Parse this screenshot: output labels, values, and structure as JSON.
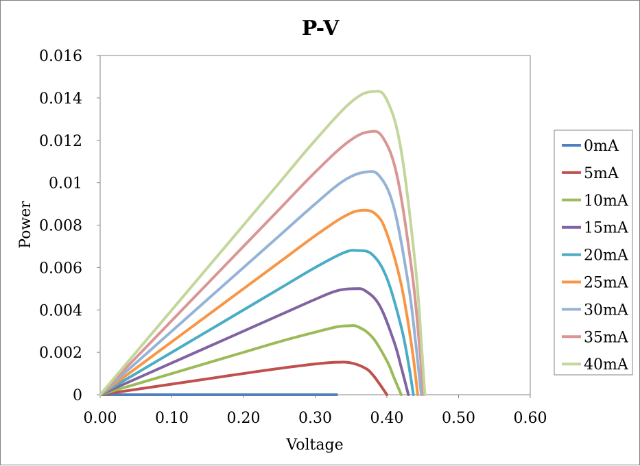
{
  "chart_data": {
    "type": "line",
    "title": "P-V",
    "xlabel": "Voltage",
    "ylabel": "Power",
    "xlim": [
      0,
      0.6
    ],
    "ylim": [
      0,
      0.016
    ],
    "x_ticks": [
      "0.00",
      "0.10",
      "0.20",
      "0.30",
      "0.40",
      "0.50",
      "0.60"
    ],
    "y_ticks": [
      "0",
      "0.002",
      "0.004",
      "0.006",
      "0.008",
      "0.01",
      "0.012",
      "0.014",
      "0.016"
    ],
    "grid": false,
    "legend_position": "right",
    "series": [
      {
        "name": "0mA",
        "color": "#4f81bd",
        "x": [
          0.0,
          0.05,
          0.1,
          0.15,
          0.2,
          0.25,
          0.3,
          0.33
        ],
        "y": [
          0,
          0,
          0,
          0,
          0,
          0,
          0,
          0
        ]
      },
      {
        "name": "5mA",
        "color": "#c0504d",
        "x": [
          0.0,
          0.05,
          0.1,
          0.15,
          0.2,
          0.25,
          0.3,
          0.33,
          0.35,
          0.37,
          0.38,
          0.39,
          0.4
        ],
        "y": [
          0,
          0.00025,
          0.0005,
          0.00075,
          0.001,
          0.00124,
          0.00145,
          0.00153,
          0.0015,
          0.00125,
          0.00095,
          0.0005,
          0
        ]
      },
      {
        "name": "10mA",
        "color": "#9bbb59",
        "x": [
          0.0,
          0.05,
          0.1,
          0.15,
          0.2,
          0.25,
          0.3,
          0.33,
          0.345,
          0.36,
          0.38,
          0.4,
          0.41,
          0.42
        ],
        "y": [
          0,
          0.0005,
          0.001,
          0.0015,
          0.002,
          0.0025,
          0.00295,
          0.0032,
          0.00325,
          0.0032,
          0.0027,
          0.0016,
          0.0008,
          0
        ]
      },
      {
        "name": "15mA",
        "color": "#8064a2",
        "x": [
          0.0,
          0.05,
          0.1,
          0.15,
          0.2,
          0.25,
          0.3,
          0.33,
          0.355,
          0.37,
          0.39,
          0.41,
          0.42,
          0.43
        ],
        "y": [
          0,
          0.00075,
          0.0015,
          0.00225,
          0.003,
          0.00375,
          0.0045,
          0.0049,
          0.005,
          0.0049,
          0.0042,
          0.0025,
          0.0013,
          0
        ]
      },
      {
        "name": "20mA",
        "color": "#4bacc6",
        "x": [
          0.0,
          0.05,
          0.1,
          0.15,
          0.2,
          0.25,
          0.3,
          0.34,
          0.36,
          0.38,
          0.4,
          0.42,
          0.43,
          0.437
        ],
        "y": [
          0,
          0.001,
          0.002,
          0.003,
          0.004,
          0.005,
          0.006,
          0.0067,
          0.0068,
          0.0066,
          0.0055,
          0.0032,
          0.0015,
          0
        ]
      },
      {
        "name": "25mA",
        "color": "#f79646",
        "x": [
          0.0,
          0.05,
          0.1,
          0.15,
          0.2,
          0.25,
          0.3,
          0.34,
          0.365,
          0.385,
          0.4,
          0.42,
          0.435,
          0.443
        ],
        "y": [
          0,
          0.00125,
          0.0025,
          0.00375,
          0.005,
          0.00625,
          0.0075,
          0.0084,
          0.0087,
          0.0085,
          0.0076,
          0.0052,
          0.0022,
          0
        ]
      },
      {
        "name": "30mA",
        "color": "#95b3d7",
        "x": [
          0.0,
          0.05,
          0.1,
          0.15,
          0.2,
          0.25,
          0.3,
          0.34,
          0.37,
          0.39,
          0.41,
          0.43,
          0.44,
          0.448
        ],
        "y": [
          0,
          0.0015,
          0.003,
          0.0045,
          0.006,
          0.0075,
          0.009,
          0.0101,
          0.0105,
          0.0103,
          0.0088,
          0.0052,
          0.0025,
          0
        ]
      },
      {
        "name": "35mA",
        "color": "#d99694",
        "x": [
          0.0,
          0.05,
          0.1,
          0.15,
          0.2,
          0.25,
          0.3,
          0.345,
          0.375,
          0.395,
          0.415,
          0.435,
          0.445,
          0.451
        ],
        "y": [
          0,
          0.00175,
          0.0035,
          0.00525,
          0.007,
          0.00875,
          0.0105,
          0.0119,
          0.0124,
          0.0121,
          0.0102,
          0.0058,
          0.0025,
          0
        ]
      },
      {
        "name": "40mA",
        "color": "#c3d69b",
        "x": [
          0.0,
          0.05,
          0.1,
          0.15,
          0.2,
          0.25,
          0.3,
          0.35,
          0.38,
          0.4,
          0.42,
          0.44,
          0.448,
          0.453
        ],
        "y": [
          0,
          0.002,
          0.004,
          0.006,
          0.008,
          0.01,
          0.012,
          0.0138,
          0.0143,
          0.0139,
          0.0115,
          0.006,
          0.0025,
          0
        ]
      }
    ]
  }
}
